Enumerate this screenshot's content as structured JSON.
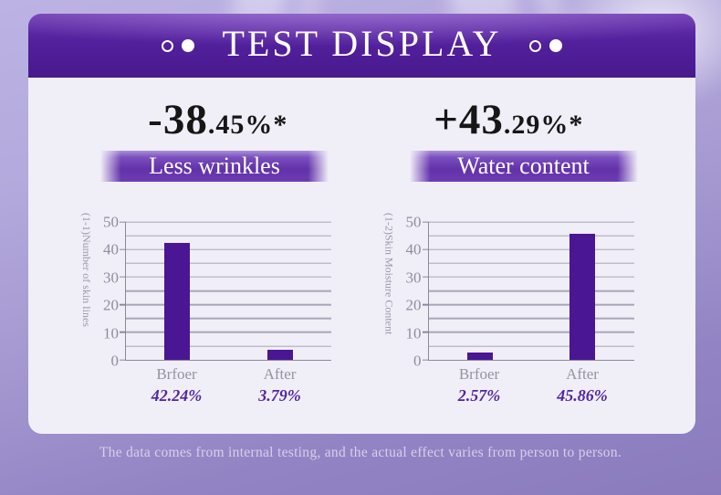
{
  "header": {
    "title": "TEST DISPLAY"
  },
  "panels": [
    {
      "headline_big": "-38",
      "headline_small": ".45%*",
      "headline_full": "-38.45%*",
      "band_label": "Less wrinkles"
    },
    {
      "headline_big": "+43",
      "headline_small": ".29%*",
      "headline_full": "+43.29%*",
      "band_label": "Water content"
    }
  ],
  "chart_data": [
    {
      "type": "bar",
      "title": "Less wrinkles",
      "headline": "-38.45%*",
      "ylabel": "(1-1)Number of skin lines",
      "categories": [
        "Brfoer",
        "After"
      ],
      "values": [
        42.24,
        3.79
      ],
      "value_labels": [
        "42.24%",
        "3.79%"
      ],
      "ylim": [
        0,
        50
      ],
      "yticks": [
        0,
        10,
        20,
        30,
        40,
        50
      ],
      "grid_step": 5,
      "grid": true,
      "legend": false,
      "bar_color": "#4a1694"
    },
    {
      "type": "bar",
      "title": "Water content",
      "headline": "+43.29%*",
      "ylabel": "(1-2)Skin Moisture Content",
      "categories": [
        "Brfoer",
        "After"
      ],
      "values": [
        2.57,
        45.86
      ],
      "value_labels": [
        "2.57%",
        "45.86%"
      ],
      "ylim": [
        0,
        50
      ],
      "yticks": [
        0,
        10,
        20,
        30,
        40,
        50
      ],
      "grid_step": 5,
      "grid": true,
      "legend": false,
      "bar_color": "#4a1694"
    }
  ],
  "footer": {
    "disclaimer": "The data comes from internal testing, and the actual effect varies from person to person."
  },
  "colors": {
    "banner_purple": "#4c1b95",
    "bar_purple": "#4a1694",
    "band_purple": "#6232a9",
    "card_bg": "#f0eef7",
    "value_text": "#53269e",
    "page_bg_top": "#b7aede",
    "page_bg_bottom": "#8b7bbd"
  }
}
